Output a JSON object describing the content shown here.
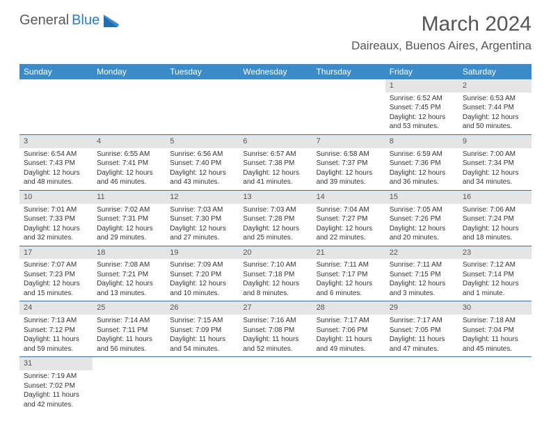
{
  "logo": {
    "word1": "General",
    "word2": "Blue"
  },
  "title": "March 2024",
  "location": "Daireaux, Buenos Aires, Argentina",
  "colors": {
    "header_bg": "#3b8bc9",
    "header_text": "#ffffff",
    "daynum_bg": "#e5e5e5",
    "row_border": "#2f6fa8",
    "text": "#333333",
    "logo_gray": "#5a5a5a",
    "logo_blue": "#2b7bbf"
  },
  "dow": [
    "Sunday",
    "Monday",
    "Tuesday",
    "Wednesday",
    "Thursday",
    "Friday",
    "Saturday"
  ],
  "weeks": [
    [
      null,
      null,
      null,
      null,
      null,
      {
        "n": "1",
        "sunrise": "6:52 AM",
        "sunset": "7:45 PM",
        "dlh": "12",
        "dlm": "53"
      },
      {
        "n": "2",
        "sunrise": "6:53 AM",
        "sunset": "7:44 PM",
        "dlh": "12",
        "dlm": "50"
      }
    ],
    [
      {
        "n": "3",
        "sunrise": "6:54 AM",
        "sunset": "7:43 PM",
        "dlh": "12",
        "dlm": "48"
      },
      {
        "n": "4",
        "sunrise": "6:55 AM",
        "sunset": "7:41 PM",
        "dlh": "12",
        "dlm": "46"
      },
      {
        "n": "5",
        "sunrise": "6:56 AM",
        "sunset": "7:40 PM",
        "dlh": "12",
        "dlm": "43"
      },
      {
        "n": "6",
        "sunrise": "6:57 AM",
        "sunset": "7:38 PM",
        "dlh": "12",
        "dlm": "41"
      },
      {
        "n": "7",
        "sunrise": "6:58 AM",
        "sunset": "7:37 PM",
        "dlh": "12",
        "dlm": "39"
      },
      {
        "n": "8",
        "sunrise": "6:59 AM",
        "sunset": "7:36 PM",
        "dlh": "12",
        "dlm": "36"
      },
      {
        "n": "9",
        "sunrise": "7:00 AM",
        "sunset": "7:34 PM",
        "dlh": "12",
        "dlm": "34"
      }
    ],
    [
      {
        "n": "10",
        "sunrise": "7:01 AM",
        "sunset": "7:33 PM",
        "dlh": "12",
        "dlm": "32"
      },
      {
        "n": "11",
        "sunrise": "7:02 AM",
        "sunset": "7:31 PM",
        "dlh": "12",
        "dlm": "29"
      },
      {
        "n": "12",
        "sunrise": "7:03 AM",
        "sunset": "7:30 PM",
        "dlh": "12",
        "dlm": "27"
      },
      {
        "n": "13",
        "sunrise": "7:03 AM",
        "sunset": "7:28 PM",
        "dlh": "12",
        "dlm": "25"
      },
      {
        "n": "14",
        "sunrise": "7:04 AM",
        "sunset": "7:27 PM",
        "dlh": "12",
        "dlm": "22"
      },
      {
        "n": "15",
        "sunrise": "7:05 AM",
        "sunset": "7:26 PM",
        "dlh": "12",
        "dlm": "20"
      },
      {
        "n": "16",
        "sunrise": "7:06 AM",
        "sunset": "7:24 PM",
        "dlh": "12",
        "dlm": "18"
      }
    ],
    [
      {
        "n": "17",
        "sunrise": "7:07 AM",
        "sunset": "7:23 PM",
        "dlh": "12",
        "dlm": "15"
      },
      {
        "n": "18",
        "sunrise": "7:08 AM",
        "sunset": "7:21 PM",
        "dlh": "12",
        "dlm": "13"
      },
      {
        "n": "19",
        "sunrise": "7:09 AM",
        "sunset": "7:20 PM",
        "dlh": "12",
        "dlm": "10"
      },
      {
        "n": "20",
        "sunrise": "7:10 AM",
        "sunset": "7:18 PM",
        "dlh": "12",
        "dlm": "8"
      },
      {
        "n": "21",
        "sunrise": "7:11 AM",
        "sunset": "7:17 PM",
        "dlh": "12",
        "dlm": "6"
      },
      {
        "n": "22",
        "sunrise": "7:11 AM",
        "sunset": "7:15 PM",
        "dlh": "12",
        "dlm": "3"
      },
      {
        "n": "23",
        "sunrise": "7:12 AM",
        "sunset": "7:14 PM",
        "dlh": "12",
        "dlm": "1"
      }
    ],
    [
      {
        "n": "24",
        "sunrise": "7:13 AM",
        "sunset": "7:12 PM",
        "dlh": "11",
        "dlm": "59"
      },
      {
        "n": "25",
        "sunrise": "7:14 AM",
        "sunset": "7:11 PM",
        "dlh": "11",
        "dlm": "56"
      },
      {
        "n": "26",
        "sunrise": "7:15 AM",
        "sunset": "7:09 PM",
        "dlh": "11",
        "dlm": "54"
      },
      {
        "n": "27",
        "sunrise": "7:16 AM",
        "sunset": "7:08 PM",
        "dlh": "11",
        "dlm": "52"
      },
      {
        "n": "28",
        "sunrise": "7:17 AM",
        "sunset": "7:06 PM",
        "dlh": "11",
        "dlm": "49"
      },
      {
        "n": "29",
        "sunrise": "7:17 AM",
        "sunset": "7:05 PM",
        "dlh": "11",
        "dlm": "47"
      },
      {
        "n": "30",
        "sunrise": "7:18 AM",
        "sunset": "7:04 PM",
        "dlh": "11",
        "dlm": "45"
      }
    ],
    [
      {
        "n": "31",
        "sunrise": "7:19 AM",
        "sunset": "7:02 PM",
        "dlh": "11",
        "dlm": "42"
      },
      null,
      null,
      null,
      null,
      null,
      null
    ]
  ],
  "labels": {
    "sunrise": "Sunrise:",
    "sunset": "Sunset:",
    "daylight": "Daylight:",
    "hours": "hours",
    "and": "and",
    "minutes": "minutes.",
    "minute": "minute."
  }
}
